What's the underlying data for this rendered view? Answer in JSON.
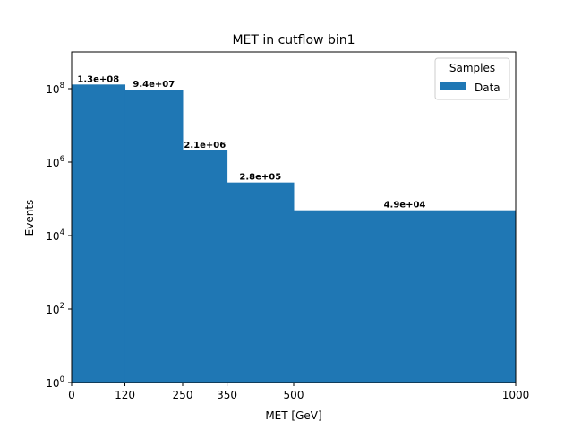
{
  "chart_data": {
    "type": "bar",
    "title": "MET in cutflow bin1",
    "xlabel": "MET [GeV]",
    "ylabel": "Events",
    "y_scale": "log",
    "ylim": [
      1,
      1000000000
    ],
    "xlim": [
      0,
      1000
    ],
    "bin_edges": [
      0,
      120,
      250,
      350,
      500,
      1000
    ],
    "x_ticks": [
      "0",
      "120",
      "250",
      "350",
      "500",
      "1000"
    ],
    "y_tick_base": "10",
    "y_tick_exponents": [
      "0",
      "2",
      "4",
      "6",
      "8"
    ],
    "series": [
      {
        "name": "Data",
        "color": "#1f77b4",
        "values": [
          130000000,
          94000000,
          2100000,
          280000,
          49000
        ],
        "value_labels": [
          "1.3e+08",
          "9.4e+07",
          "2.1e+06",
          "2.8e+05",
          "4.9e+04"
        ]
      }
    ],
    "legend": {
      "title": "Samples",
      "placement": "top-right"
    },
    "grid": false
  }
}
